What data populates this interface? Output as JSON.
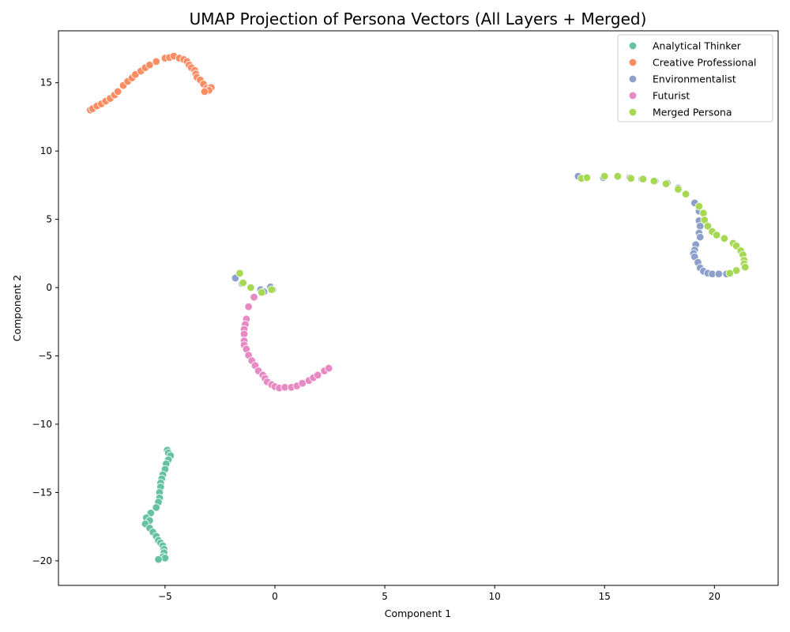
{
  "chart_data": {
    "type": "scatter",
    "title": "UMAP Projection of Persona Vectors (All Layers + Merged)",
    "xlabel": "Component 1",
    "ylabel": "Component 2",
    "xlim": [
      -9.85,
      22.9
    ],
    "ylim": [
      -21.8,
      18.8
    ],
    "xticks": [
      -5,
      0,
      5,
      10,
      15,
      20
    ],
    "yticks": [
      -20,
      -15,
      -10,
      -5,
      0,
      5,
      10,
      15
    ],
    "xtick_labels": [
      "−5",
      "0",
      "5",
      "10",
      "15",
      "20"
    ],
    "ytick_labels": [
      "−20",
      "−15",
      "−10",
      "−5",
      "0",
      "5",
      "10",
      "15"
    ],
    "grid": false,
    "legend_position": "top-right",
    "series": [
      {
        "name": "Analytical Thinker",
        "color": "#66c2a5",
        "points": [
          [
            -4.9,
            -11.9
          ],
          [
            -4.85,
            -12.1
          ],
          [
            -4.75,
            -12.3
          ],
          [
            -4.85,
            -12.6
          ],
          [
            -4.95,
            -12.9
          ],
          [
            -5.0,
            -13.3
          ],
          [
            -5.1,
            -13.7
          ],
          [
            -5.15,
            -14.0
          ],
          [
            -5.2,
            -14.3
          ],
          [
            -5.2,
            -14.6
          ],
          [
            -5.25,
            -15.0
          ],
          [
            -5.25,
            -15.4
          ],
          [
            -5.3,
            -15.7
          ],
          [
            -5.4,
            -16.1
          ],
          [
            -5.65,
            -16.5
          ],
          [
            -5.85,
            -16.85
          ],
          [
            -5.7,
            -17.05
          ],
          [
            -5.9,
            -17.3
          ],
          [
            -5.7,
            -17.6
          ],
          [
            -5.55,
            -17.9
          ],
          [
            -5.4,
            -18.2
          ],
          [
            -5.3,
            -18.5
          ],
          [
            -5.2,
            -18.7
          ],
          [
            -5.1,
            -18.9
          ],
          [
            -5.05,
            -19.15
          ],
          [
            -5.05,
            -19.4
          ],
          [
            -5.1,
            -19.7
          ],
          [
            -5.0,
            -19.8
          ],
          [
            -5.3,
            -19.9
          ]
        ]
      },
      {
        "name": "Creative Professional",
        "color": "#fc8d62",
        "points": [
          [
            -8.4,
            13.0
          ],
          [
            -8.3,
            13.1
          ],
          [
            -8.1,
            13.3
          ],
          [
            -7.9,
            13.45
          ],
          [
            -7.7,
            13.65
          ],
          [
            -7.5,
            13.85
          ],
          [
            -7.3,
            14.1
          ],
          [
            -7.15,
            14.35
          ],
          [
            -6.9,
            14.8
          ],
          [
            -6.7,
            15.1
          ],
          [
            -6.5,
            15.35
          ],
          [
            -6.35,
            15.6
          ],
          [
            -6.1,
            15.85
          ],
          [
            -5.9,
            16.1
          ],
          [
            -5.7,
            16.3
          ],
          [
            -5.4,
            16.55
          ],
          [
            -5.0,
            16.8
          ],
          [
            -4.8,
            16.85
          ],
          [
            -4.6,
            16.95
          ],
          [
            -4.35,
            16.8
          ],
          [
            -4.15,
            16.7
          ],
          [
            -4.0,
            16.55
          ],
          [
            -3.9,
            16.3
          ],
          [
            -3.8,
            16.1
          ],
          [
            -3.65,
            15.9
          ],
          [
            -3.6,
            15.65
          ],
          [
            -3.55,
            15.4
          ],
          [
            -3.4,
            15.2
          ],
          [
            -3.25,
            14.9
          ],
          [
            -3.1,
            14.6
          ],
          [
            -2.9,
            14.65
          ],
          [
            -3.0,
            14.45
          ],
          [
            -3.2,
            14.35
          ]
        ]
      },
      {
        "name": "Environmentalist",
        "color": "#8da0cb",
        "points": [
          [
            13.8,
            8.15
          ],
          [
            14.95,
            8.05
          ],
          [
            15.6,
            8.1
          ],
          [
            16.15,
            8.05
          ],
          [
            16.7,
            7.95
          ],
          [
            17.3,
            7.8
          ],
          [
            17.85,
            7.65
          ],
          [
            18.35,
            7.3
          ],
          [
            19.1,
            6.2
          ],
          [
            19.3,
            5.6
          ],
          [
            19.3,
            4.9
          ],
          [
            19.35,
            4.5
          ],
          [
            19.3,
            4.0
          ],
          [
            19.35,
            3.7
          ],
          [
            19.15,
            3.15
          ],
          [
            19.1,
            2.75
          ],
          [
            19.05,
            2.5
          ],
          [
            19.1,
            2.25
          ],
          [
            19.25,
            1.85
          ],
          [
            19.35,
            1.45
          ],
          [
            19.5,
            1.2
          ],
          [
            19.7,
            1.05
          ],
          [
            19.9,
            1.0
          ],
          [
            20.2,
            1.0
          ],
          [
            20.55,
            1.0
          ],
          [
            -1.8,
            0.7
          ],
          [
            -1.5,
            0.3
          ],
          [
            -0.65,
            -0.15
          ],
          [
            -0.5,
            -0.3
          ],
          [
            -0.2,
            0.05
          ],
          [
            -0.1,
            -0.15
          ]
        ]
      },
      {
        "name": "Futurist",
        "color": "#e78ac3",
        "points": [
          [
            -0.95,
            -0.7
          ],
          [
            -1.2,
            -1.4
          ],
          [
            -1.3,
            -2.3
          ],
          [
            -1.35,
            -2.7
          ],
          [
            -1.4,
            -3.05
          ],
          [
            -1.4,
            -3.4
          ],
          [
            -1.4,
            -3.9
          ],
          [
            -1.4,
            -4.2
          ],
          [
            -1.3,
            -4.5
          ],
          [
            -1.2,
            -4.95
          ],
          [
            -1.05,
            -5.35
          ],
          [
            -0.9,
            -5.7
          ],
          [
            -0.75,
            -6.1
          ],
          [
            -0.55,
            -6.4
          ],
          [
            -0.45,
            -6.65
          ],
          [
            -0.35,
            -6.9
          ],
          [
            -0.15,
            -7.1
          ],
          [
            0.0,
            -7.25
          ],
          [
            0.2,
            -7.35
          ],
          [
            0.45,
            -7.3
          ],
          [
            0.75,
            -7.3
          ],
          [
            1.0,
            -7.2
          ],
          [
            1.25,
            -7.0
          ],
          [
            1.55,
            -6.8
          ],
          [
            1.75,
            -6.6
          ],
          [
            1.95,
            -6.4
          ],
          [
            2.25,
            -6.1
          ],
          [
            2.45,
            -5.9
          ]
        ]
      },
      {
        "name": "Merged Persona",
        "color": "#a6d854",
        "points": [
          [
            13.95,
            8.0
          ],
          [
            14.2,
            8.05
          ],
          [
            15.0,
            8.15
          ],
          [
            15.6,
            8.15
          ],
          [
            16.2,
            8.0
          ],
          [
            16.75,
            7.95
          ],
          [
            17.25,
            7.8
          ],
          [
            17.8,
            7.6
          ],
          [
            18.35,
            7.2
          ],
          [
            18.7,
            6.85
          ],
          [
            19.3,
            5.95
          ],
          [
            19.5,
            5.45
          ],
          [
            19.55,
            4.95
          ],
          [
            19.7,
            4.5
          ],
          [
            19.9,
            4.1
          ],
          [
            20.1,
            3.85
          ],
          [
            20.45,
            3.6
          ],
          [
            20.85,
            3.25
          ],
          [
            21.0,
            3.05
          ],
          [
            21.2,
            2.7
          ],
          [
            21.3,
            2.4
          ],
          [
            21.35,
            2.0
          ],
          [
            21.35,
            1.75
          ],
          [
            21.4,
            1.5
          ],
          [
            21.0,
            1.25
          ],
          [
            20.7,
            1.05
          ],
          [
            -1.6,
            1.05
          ],
          [
            -1.45,
            0.35
          ],
          [
            -1.1,
            0.0
          ],
          [
            -0.6,
            -0.35
          ],
          [
            -0.15,
            -0.15
          ]
        ]
      }
    ]
  }
}
